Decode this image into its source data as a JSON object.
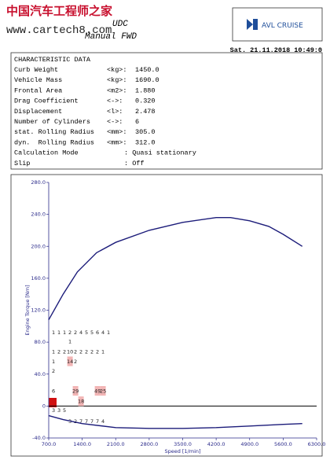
{
  "header": {
    "watermark": "中国汽车工程师之家",
    "url": "www.cartech8.com",
    "title": "UDC",
    "subtitle": "Manual FWD",
    "logo": "AVL CRUISE",
    "date": "Sat. 21.11.2018 10:49:0"
  },
  "table": {
    "title": "CHARACTERISTIC DATA",
    "rows": [
      {
        "label": "Curb Weight",
        "unit": "<kg>:",
        "value": "1450.0"
      },
      {
        "label": "Vehicle Mass",
        "unit": "<kg>:",
        "value": "1690.0"
      },
      {
        "label": "Frontal Area",
        "unit": "<m2>:",
        "value": "1.880"
      },
      {
        "label": "Drag Coefficient",
        "unit": "<->:",
        "value": "0.320"
      },
      {
        "label": "Displacement",
        "unit": "<l>:",
        "value": "2.478"
      },
      {
        "label": "Number of Cylinders",
        "unit": "<->:",
        "value": "6"
      },
      {
        "label": "stat. Rolling Radius",
        "unit": "<mm>:",
        "value": "305.0"
      },
      {
        "label": "dyn.  Rolling Radius",
        "unit": "<mm>:",
        "value": "312.0"
      },
      {
        "label": "Calculation Mode",
        "value": ": Quasi stationary"
      },
      {
        "label": "Slip",
        "value": ": Off"
      }
    ]
  },
  "chart_data": {
    "type": "line",
    "xlabel": "Speed [1/min]",
    "ylabel": "Engine Torque [Nm]",
    "xlim": [
      700,
      6300
    ],
    "ylim": [
      -40,
      280
    ],
    "xticks": [
      {
        "value": 700,
        "label": "700.0"
      },
      {
        "value": 1400,
        "label": "1400.0"
      },
      {
        "value": 2100,
        "label": "2100.0"
      },
      {
        "value": 2800,
        "label": "2800.0"
      },
      {
        "value": 3500,
        "label": "3500.0"
      },
      {
        "value": 4200,
        "label": "4200.0"
      },
      {
        "value": 4900,
        "label": "4900.0"
      },
      {
        "value": 5600,
        "label": "5600.0"
      },
      {
        "value": 6300,
        "label": "6300.0"
      }
    ],
    "yticks": [
      {
        "value": -40,
        "label": "-40.0"
      },
      {
        "value": 0,
        "label": "0"
      },
      {
        "value": 40,
        "label": "40.0"
      },
      {
        "value": 80,
        "label": "80.0"
      },
      {
        "value": 120,
        "label": "120.0"
      },
      {
        "value": 160,
        "label": "160.0"
      },
      {
        "value": 200,
        "label": "200.0"
      },
      {
        "value": 240,
        "label": "240.0"
      },
      {
        "value": 280,
        "label": "280.0"
      }
    ],
    "zero_line": true,
    "series": [
      {
        "color": "#1c1c7a",
        "x": [
          700,
          1000,
          1300,
          1700,
          2100,
          2800,
          3500,
          4200,
          4500,
          4900,
          5300,
          5600,
          6000
        ],
        "values": [
          108,
          140,
          168,
          192,
          205,
          220,
          230,
          236,
          236,
          232,
          225,
          215,
          200
        ]
      },
      {
        "color": "#1c1c7a",
        "x": [
          700,
          1000,
          1400,
          2100,
          2800,
          3500,
          4200,
          4900,
          5600,
          6000
        ],
        "values": [
          -12,
          -17,
          -22,
          -27,
          -28,
          -28,
          -27,
          -25,
          -23,
          -22
        ]
      }
    ],
    "cell_color": "#f2b5b5",
    "cells": [
      {
        "x": 800,
        "y": 92,
        "count": 1
      },
      {
        "x": 915,
        "y": 92,
        "count": 1
      },
      {
        "x": 1030,
        "y": 92,
        "count": 1
      },
      {
        "x": 1145,
        "y": 92,
        "count": 2
      },
      {
        "x": 1260,
        "y": 92,
        "count": 2
      },
      {
        "x": 1375,
        "y": 92,
        "count": 4
      },
      {
        "x": 1490,
        "y": 92,
        "count": 5
      },
      {
        "x": 1605,
        "y": 92,
        "count": 5
      },
      {
        "x": 1720,
        "y": 92,
        "count": 6
      },
      {
        "x": 1835,
        "y": 92,
        "count": 4
      },
      {
        "x": 1950,
        "y": 92,
        "count": 1
      },
      {
        "x": 1145,
        "y": 81,
        "count": 1
      },
      {
        "x": 800,
        "y": 68,
        "count": 1
      },
      {
        "x": 915,
        "y": 68,
        "count": 2
      },
      {
        "x": 1030,
        "y": 68,
        "count": 2
      },
      {
        "x": 1145,
        "y": 68,
        "count": 10
      },
      {
        "x": 1260,
        "y": 68,
        "count": 2
      },
      {
        "x": 1375,
        "y": 68,
        "count": 2
      },
      {
        "x": 1490,
        "y": 68,
        "count": 2
      },
      {
        "x": 1605,
        "y": 68,
        "count": 2
      },
      {
        "x": 1720,
        "y": 68,
        "count": 2
      },
      {
        "x": 1835,
        "y": 68,
        "count": 1
      },
      {
        "x": 800,
        "y": 56,
        "count": 1
      },
      {
        "x": 1145,
        "y": 56,
        "count": 14,
        "highlight": true
      },
      {
        "x": 1260,
        "y": 56,
        "count": 2
      },
      {
        "x": 800,
        "y": 44,
        "count": 2
      },
      {
        "x": 800,
        "y": 19,
        "count": 6
      },
      {
        "x": 1260,
        "y": 19,
        "count": 29,
        "highlight": true
      },
      {
        "x": 1720,
        "y": 19,
        "count": 49,
        "highlight": true
      },
      {
        "x": 1835,
        "y": 19,
        "count": 25,
        "highlight": true
      },
      {
        "x": 1375,
        "y": 6,
        "count": 18,
        "highlight": true
      },
      {
        "x": 800,
        "y": -5,
        "count": 3
      },
      {
        "x": 915,
        "y": -5,
        "count": 3
      },
      {
        "x": 1030,
        "y": -5,
        "count": 5
      },
      {
        "x": 1145,
        "y": -19,
        "count": 3
      },
      {
        "x": 1260,
        "y": -19,
        "count": 2
      },
      {
        "x": 1375,
        "y": -19,
        "count": 7
      },
      {
        "x": 1490,
        "y": -19,
        "count": 7
      },
      {
        "x": 1605,
        "y": -19,
        "count": 7
      },
      {
        "x": 1720,
        "y": -19,
        "count": 7
      },
      {
        "x": 1835,
        "y": -19,
        "count": 4
      }
    ]
  }
}
